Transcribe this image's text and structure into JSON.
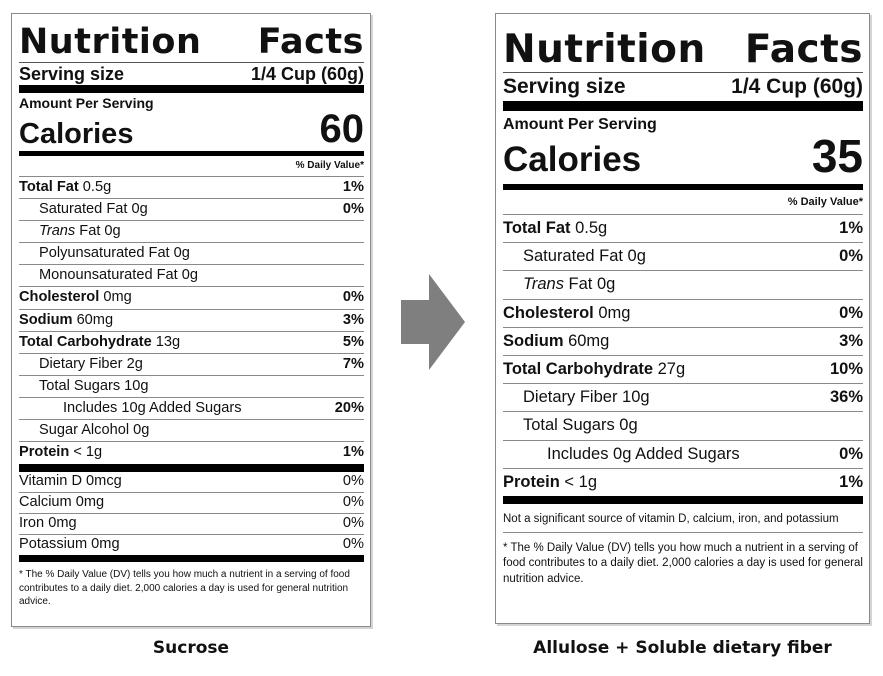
{
  "left": {
    "title_left": "Nutrition",
    "title_right": "Facts",
    "serving_label": "Serving size",
    "serving_value": "1/4 Cup (60g)",
    "amount_label": "Amount Per Serving",
    "calories_label": "Calories",
    "calories_value": "60",
    "dv_header": "% Daily Value*",
    "nutrients": [
      {
        "name": "Total Fat",
        "amount": " 0.5g",
        "pct": "1%"
      },
      {
        "name": "Saturated Fat 0g",
        "pct": "0%"
      },
      {
        "name": "Trans",
        "amount": " Fat 0g",
        "pct": ""
      },
      {
        "name": "Polyunsaturated Fat 0g",
        "pct": ""
      },
      {
        "name": "Monounsaturated Fat 0g",
        "pct": ""
      },
      {
        "name": "Cholesterol",
        "amount": " 0mg",
        "pct": "0%"
      },
      {
        "name": "Sodium",
        "amount": " 60mg",
        "pct": "3%"
      },
      {
        "name": "Total Carbohydrate",
        "amount": " 13g",
        "pct": "5%"
      },
      {
        "name": "Dietary Fiber 2g",
        "pct": "7%"
      },
      {
        "name": "Total Sugars 10g",
        "pct": ""
      },
      {
        "name": "Includes 10g Added Sugars",
        "pct": "20%"
      },
      {
        "name": "Sugar Alcohol 0g",
        "pct": ""
      },
      {
        "name": "Protein",
        "amount": " < 1g",
        "pct": "1%"
      }
    ],
    "vitamins": [
      {
        "name": "Vitamin D 0mcg",
        "pct": "0%"
      },
      {
        "name": "Calcium 0mg",
        "pct": "0%"
      },
      {
        "name": "Iron 0mg",
        "pct": "0%"
      },
      {
        "name": "Potassium 0mg",
        "pct": "0%"
      }
    ],
    "footnote": "* The % Daily Value (DV) tells you how much a nutrient in a serving of food contributes to a daily diet. 2,000 calories a day is used for general nutrition advice."
  },
  "right": {
    "title_left": "Nutrition",
    "title_right": "Facts",
    "serving_label": "Serving size",
    "serving_value": "1/4 Cup (60g)",
    "amount_label": "Amount Per Serving",
    "calories_label": "Calories",
    "calories_value": "35",
    "dv_header": "% Daily Value*",
    "nutrients": [
      {
        "name": "Total Fat",
        "amount": " 0.5g",
        "pct": "1%"
      },
      {
        "name": "Saturated Fat 0g",
        "pct": "0%"
      },
      {
        "name": "Trans",
        "amount": " Fat 0g",
        "pct": ""
      },
      {
        "name": "Cholesterol",
        "amount": " 0mg",
        "pct": "0%"
      },
      {
        "name": "Sodium",
        "amount": " 60mg",
        "pct": "3%"
      },
      {
        "name": "Total Carbohydrate",
        "amount": " 27g",
        "pct": "10%"
      },
      {
        "name": "Dietary Fiber 10g",
        "pct": "36%"
      },
      {
        "name": "Total Sugars 0g",
        "pct": ""
      },
      {
        "name": "Includes 0g Added Sugars",
        "pct": "0%"
      },
      {
        "name": "Protein",
        "amount": " < 1g",
        "pct": "1%"
      }
    ],
    "note": "Not a significant source of vitamin D, calcium, iron, and potassium",
    "footnote": "* The % Daily Value (DV) tells you how much a nutrient in a serving of food contributes to a daily diet. 2,000 calories a day is used for general nutrition advice."
  },
  "captions": {
    "left": "Sucrose",
    "right": "Allulose + Soluble dietary fiber"
  },
  "arrow": {
    "icon": "right-arrow-icon",
    "color": "#7f7f7f"
  }
}
